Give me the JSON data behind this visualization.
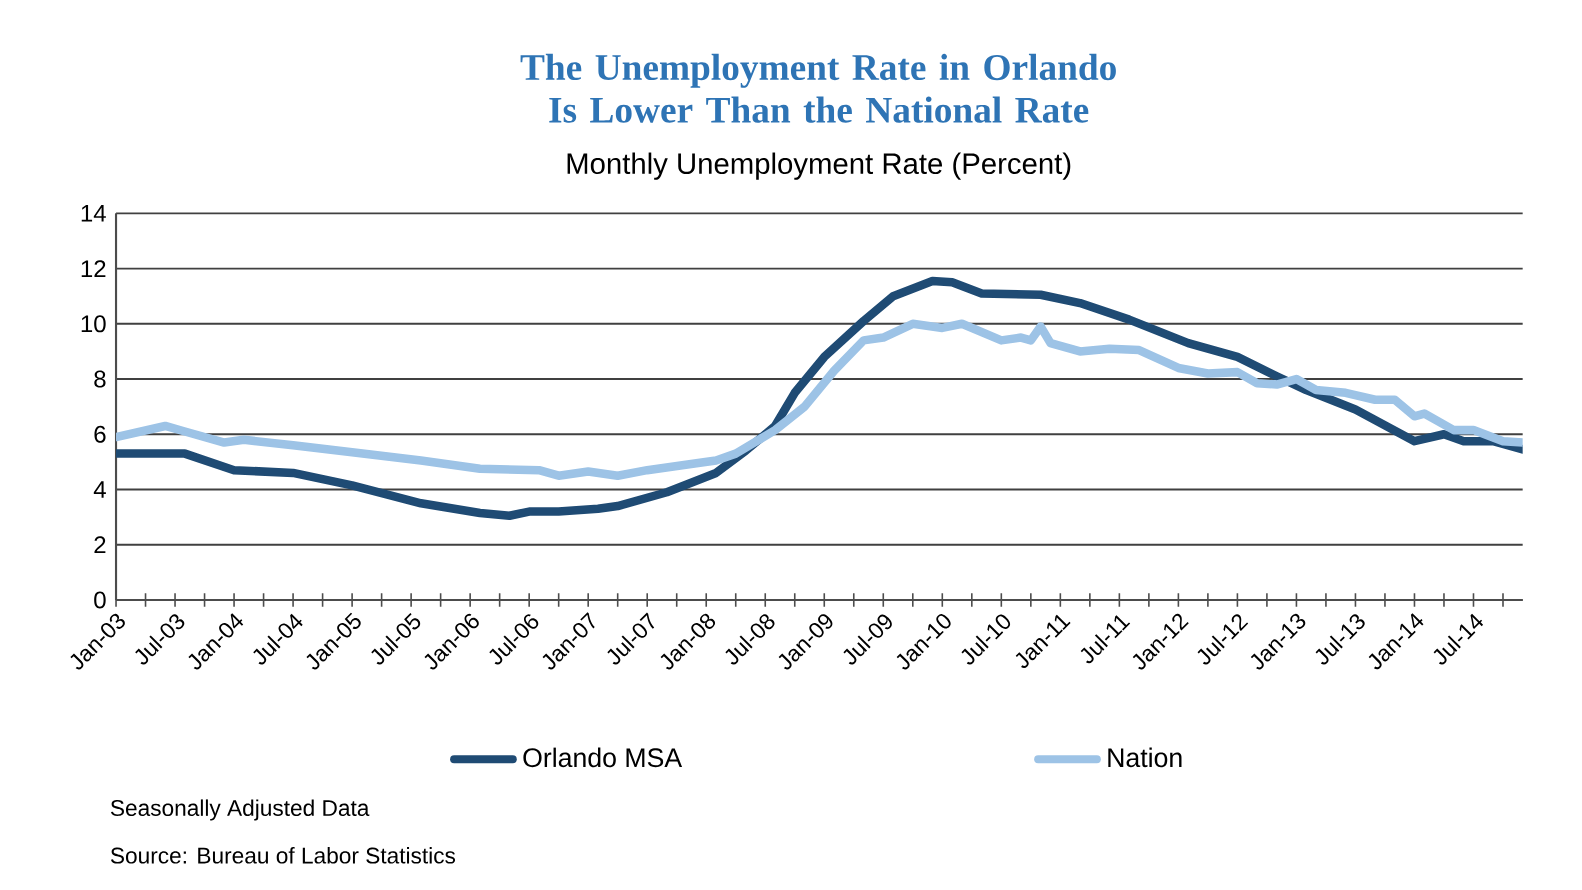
{
  "chart_data": {
    "type": "line",
    "title": "The Unemployment Rate in Orlando Is Lower Than the National Rate",
    "subtitle": "Monthly Unemployment Rate (Percent)",
    "annotations": [
      "Seasonally Adjusted Data",
      "Source: Bureau of Labor Statistics"
    ],
    "series": [
      {
        "name": "Orlando MSA",
        "color": "#1f4b74",
        "x": [
          "2003-01",
          "2003-08",
          "2004-01",
          "2004-07",
          "2005-01",
          "2005-08",
          "2006-02",
          "2006-05",
          "2006-07",
          "2006-10",
          "2007-02",
          "2007-04",
          "2007-09",
          "2008-02",
          "2008-05",
          "2008-08",
          "2008-10",
          "2009-01",
          "2009-05",
          "2009-08",
          "2009-12",
          "2010-02",
          "2010-05",
          "2010-11",
          "2011-03",
          "2011-08",
          "2012-02",
          "2012-07",
          "2012-11",
          "2013-02",
          "2013-07",
          "2014-01",
          "2014-04",
          "2014-06",
          "2014-09",
          "2014-12"
        ],
        "values": [
          5.3,
          5.3,
          4.7,
          4.6,
          4.15,
          3.5,
          3.15,
          3.05,
          3.2,
          3.2,
          3.3,
          3.4,
          3.9,
          4.6,
          5.4,
          6.3,
          7.5,
          8.8,
          10.1,
          11.0,
          11.55,
          11.5,
          11.1,
          11.05,
          10.75,
          10.15,
          9.3,
          8.8,
          8.1,
          7.6,
          6.9,
          5.75,
          6.0,
          5.75,
          5.75,
          5.45
        ]
      },
      {
        "name": "Nation",
        "color": "#9dc3e6",
        "x": [
          "2003-01",
          "2003-06",
          "2003-08",
          "2003-12",
          "2004-02",
          "2004-07",
          "2005-01",
          "2005-08",
          "2006-02",
          "2006-08",
          "2006-10",
          "2007-01",
          "2007-04",
          "2007-07",
          "2007-12",
          "2008-02",
          "2008-04",
          "2008-08",
          "2008-11",
          "2009-02",
          "2009-05",
          "2009-07",
          "2009-10",
          "2010-01",
          "2010-03",
          "2010-07",
          "2010-09",
          "2010-10",
          "2010-11",
          "2010-12",
          "2011-03",
          "2011-06",
          "2011-09",
          "2012-01",
          "2012-04",
          "2012-07",
          "2012-09",
          "2012-11",
          "2013-01",
          "2013-03",
          "2013-06",
          "2013-09",
          "2013-11",
          "2014-01",
          "2014-02",
          "2014-05",
          "2014-07",
          "2014-10",
          "2014-12"
        ],
        "values": [
          5.9,
          6.3,
          6.1,
          5.7,
          5.8,
          5.6,
          5.35,
          5.05,
          4.75,
          4.7,
          4.5,
          4.65,
          4.5,
          4.7,
          4.95,
          5.05,
          5.3,
          6.15,
          7.0,
          8.3,
          9.4,
          9.5,
          10.0,
          9.85,
          10.0,
          9.4,
          9.5,
          9.4,
          9.9,
          9.3,
          9.0,
          9.1,
          9.05,
          8.4,
          8.2,
          8.25,
          7.85,
          7.8,
          8.0,
          7.6,
          7.5,
          7.25,
          7.25,
          6.65,
          6.75,
          6.15,
          6.15,
          5.75,
          5.7
        ]
      }
    ],
    "xlim": [
      "2003-01",
      "2014-12"
    ],
    "xticks": [
      {
        "value": "2003-01",
        "label": "Jan-03"
      },
      {
        "value": "2003-04",
        "label": null
      },
      {
        "value": "2003-07",
        "label": "Jul-03"
      },
      {
        "value": "2003-10",
        "label": null
      },
      {
        "value": "2004-01",
        "label": "Jan-04"
      },
      {
        "value": "2004-04",
        "label": null
      },
      {
        "value": "2004-07",
        "label": "Jul-04"
      },
      {
        "value": "2004-10",
        "label": null
      },
      {
        "value": "2005-01",
        "label": "Jan-05"
      },
      {
        "value": "2005-04",
        "label": null
      },
      {
        "value": "2005-07",
        "label": "Jul-05"
      },
      {
        "value": "2005-10",
        "label": null
      },
      {
        "value": "2006-01",
        "label": "Jan-06"
      },
      {
        "value": "2006-04",
        "label": null
      },
      {
        "value": "2006-07",
        "label": "Jul-06"
      },
      {
        "value": "2006-10",
        "label": null
      },
      {
        "value": "2007-01",
        "label": "Jan-07"
      },
      {
        "value": "2007-04",
        "label": null
      },
      {
        "value": "2007-07",
        "label": "Jul-07"
      },
      {
        "value": "2007-10",
        "label": null
      },
      {
        "value": "2008-01",
        "label": "Jan-08"
      },
      {
        "value": "2008-04",
        "label": null
      },
      {
        "value": "2008-07",
        "label": "Jul-08"
      },
      {
        "value": "2008-10",
        "label": null
      },
      {
        "value": "2009-01",
        "label": "Jan-09"
      },
      {
        "value": "2009-04",
        "label": null
      },
      {
        "value": "2009-07",
        "label": "Jul-09"
      },
      {
        "value": "2009-10",
        "label": null
      },
      {
        "value": "2010-01",
        "label": "Jan-10"
      },
      {
        "value": "2010-04",
        "label": null
      },
      {
        "value": "2010-07",
        "label": "Jul-10"
      },
      {
        "value": "2010-10",
        "label": null
      },
      {
        "value": "2011-01",
        "label": "Jan-11"
      },
      {
        "value": "2011-04",
        "label": null
      },
      {
        "value": "2011-07",
        "label": "Jul-11"
      },
      {
        "value": "2011-10",
        "label": null
      },
      {
        "value": "2012-01",
        "label": "Jan-12"
      },
      {
        "value": "2012-04",
        "label": null
      },
      {
        "value": "2012-07",
        "label": "Jul-12"
      },
      {
        "value": "2012-10",
        "label": null
      },
      {
        "value": "2013-01",
        "label": "Jan-13"
      },
      {
        "value": "2013-04",
        "label": null
      },
      {
        "value": "2013-07",
        "label": "Jul-13"
      },
      {
        "value": "2013-10",
        "label": null
      },
      {
        "value": "2014-01",
        "label": "Jan-14"
      },
      {
        "value": "2014-04",
        "label": null
      },
      {
        "value": "2014-07",
        "label": "Jul-14"
      },
      {
        "value": "2014-10",
        "label": null
      }
    ],
    "ylim": [
      0,
      14
    ],
    "yticks": [
      0,
      2,
      4,
      6,
      8,
      10,
      12,
      14
    ],
    "grid": "y",
    "legend": "bottom",
    "marker": "none",
    "line_style": "solid"
  }
}
